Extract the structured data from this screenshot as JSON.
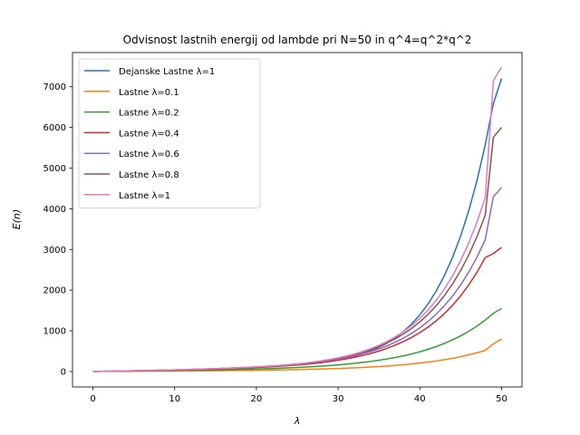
{
  "chart_data": {
    "type": "line",
    "title": "Odvisnost lastnih energij od lambde pri N=50 in q^4=q^2*q^2",
    "xlabel": "λ",
    "ylabel": "E(n)",
    "xlim": [
      0,
      50
    ],
    "ylim": [
      0,
      7500
    ],
    "xticks": [
      0,
      10,
      20,
      30,
      40,
      50
    ],
    "yticks": [
      0,
      1000,
      2000,
      3000,
      4000,
      5000,
      6000,
      7000
    ],
    "grid": false,
    "legend_position": "top-left",
    "x": [
      0,
      1,
      2,
      3,
      4,
      5,
      6,
      7,
      8,
      9,
      10,
      11,
      12,
      13,
      14,
      15,
      16,
      17,
      18,
      19,
      20,
      21,
      22,
      23,
      24,
      25,
      26,
      27,
      28,
      29,
      30,
      31,
      32,
      33,
      34,
      35,
      36,
      37,
      38,
      39,
      40,
      41,
      42,
      43,
      44,
      45,
      46,
      47,
      48,
      49,
      50
    ],
    "series": [
      {
        "name": "Dejanske Lastne  λ=1",
        "color": "#1f77b4",
        "values": [
          1,
          4,
          7,
          10,
          14,
          18,
          22,
          26,
          31,
          36,
          41,
          46,
          52,
          58,
          64,
          70,
          77,
          84,
          92,
          100,
          108,
          117,
          127,
          138,
          150,
          164,
          180,
          200,
          225,
          255,
          290,
          331,
          380,
          440,
          510,
          597,
          700,
          830,
          985,
          1170,
          1392,
          1660,
          1978,
          2355,
          2804,
          3335,
          3962,
          4700,
          5570,
          6590,
          7200
        ]
      },
      {
        "name": "Lastne  λ=0.1",
        "color": "#ff7f0e",
        "values": [
          1,
          2,
          3,
          4,
          5,
          7,
          8,
          9,
          10,
          11,
          12,
          14,
          15,
          17,
          18,
          20,
          21,
          23,
          25,
          27,
          30,
          33,
          36,
          40,
          43,
          47,
          52,
          57,
          62,
          68,
          75,
          82,
          90,
          100,
          110,
          122,
          136,
          150,
          167,
          186,
          207,
          232,
          259,
          290,
          325,
          365,
          410,
          460,
          520,
          680,
          800
        ]
      },
      {
        "name": "Lastne  λ=0.2",
        "color": "#2ca02c",
        "values": [
          1,
          3,
          5,
          7,
          9,
          11,
          13,
          15,
          18,
          20,
          23,
          26,
          29,
          32,
          35,
          39,
          43,
          47,
          52,
          57,
          62,
          68,
          75,
          82,
          90,
          99,
          109,
          120,
          133,
          147,
          163,
          181,
          201,
          223,
          248,
          277,
          309,
          345,
          386,
          432,
          485,
          545,
          612,
          690,
          777,
          877,
          990,
          1118,
          1265,
          1430,
          1550
        ]
      },
      {
        "name": "Lastne  λ=0.4",
        "color": "#d62728",
        "values": [
          1,
          3,
          5,
          8,
          11,
          14,
          17,
          21,
          25,
          29,
          33,
          38,
          43,
          48,
          54,
          60,
          66,
          73,
          81,
          89,
          98,
          108,
          119,
          131,
          145,
          160,
          177,
          197,
          220,
          246,
          276,
          310,
          349,
          393,
          444,
          503,
          570,
          648,
          737,
          839,
          956,
          1090,
          1244,
          1421,
          1626,
          1861,
          2132,
          2442,
          2800,
          2900,
          3050
        ]
      },
      {
        "name": "Lastne λ=0.6",
        "color": "#9467bd",
        "values": [
          1,
          4,
          6,
          9,
          12,
          16,
          19,
          23,
          28,
          32,
          37,
          42,
          47,
          53,
          59,
          66,
          73,
          80,
          88,
          97,
          107,
          118,
          130,
          143,
          158,
          175,
          194,
          216,
          241,
          270,
          303,
          341,
          384,
          434,
          491,
          557,
          633,
          721,
          822,
          938,
          1073,
          1229,
          1408,
          1615,
          1854,
          2130,
          2448,
          2815,
          3240,
          4300,
          4520
        ]
      },
      {
        "name": "Lastne  λ=0.8",
        "color": "#8c564b",
        "values": [
          1,
          4,
          7,
          10,
          13,
          17,
          21,
          25,
          29,
          34,
          39,
          44,
          50,
          56,
          62,
          69,
          76,
          84,
          93,
          102,
          112,
          123,
          136,
          150,
          166,
          184,
          205,
          229,
          257,
          289,
          326,
          368,
          417,
          474,
          539,
          615,
          703,
          805,
          923,
          1060,
          1219,
          1403,
          1617,
          1865,
          2152,
          2485,
          2871,
          3320,
          3840,
          5760,
          6000
        ]
      },
      {
        "name": "Lastne  λ=1",
        "color": "#e377c2",
        "values": [
          1,
          4,
          7,
          10,
          14,
          18,
          22,
          26,
          31,
          36,
          41,
          46,
          52,
          58,
          64,
          71,
          78,
          86,
          95,
          104,
          115,
          126,
          139,
          153,
          169,
          188,
          209,
          234,
          263,
          296,
          335,
          380,
          432,
          492,
          562,
          644,
          739,
          850,
          979,
          1130,
          1305,
          1510,
          1750,
          2028,
          2352,
          2729,
          3167,
          3677,
          4270,
          7150,
          7480
        ]
      }
    ]
  }
}
